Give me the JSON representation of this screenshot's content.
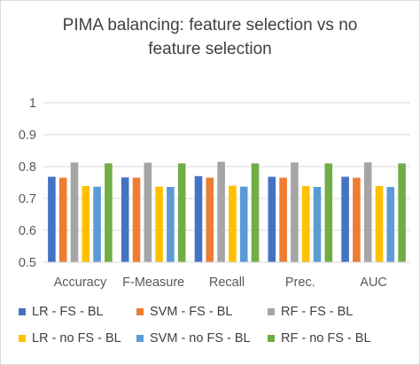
{
  "chart_data": {
    "type": "bar",
    "title": [
      "PIMA balancing: feature selection vs no",
      "feature selection"
    ],
    "xlabel": "",
    "ylabel": "",
    "categories": [
      "Accuracy",
      "F-Measure",
      "Recall",
      "Prec.",
      "AUC"
    ],
    "ylim": [
      0.5,
      1
    ],
    "yticks": [
      "0.5",
      "0.6",
      "0.7",
      "0.8",
      "0.9",
      "1"
    ],
    "grid": true,
    "legend_position": "bottom",
    "series": [
      {
        "name": "LR - FS - BL",
        "color": "#4472c4",
        "values": [
          0.768,
          0.766,
          0.77,
          0.768,
          0.768
        ]
      },
      {
        "name": "SVM - FS - BL",
        "color": "#ed7d31",
        "values": [
          0.765,
          0.765,
          0.765,
          0.765,
          0.765
        ]
      },
      {
        "name": "RF - FS - BL",
        "color": "#a5a5a5",
        "values": [
          0.813,
          0.812,
          0.815,
          0.813,
          0.813
        ]
      },
      {
        "name": "LR - no FS - BL",
        "color": "#ffc000",
        "values": [
          0.739,
          0.737,
          0.74,
          0.739,
          0.739
        ]
      },
      {
        "name": "SVM - no FS - BL",
        "color": "#5b9bd5",
        "values": [
          0.737,
          0.736,
          0.737,
          0.736,
          0.736
        ]
      },
      {
        "name": "RF - no FS - BL",
        "color": "#70ad47",
        "values": [
          0.81,
          0.81,
          0.81,
          0.81,
          0.81
        ]
      }
    ]
  }
}
